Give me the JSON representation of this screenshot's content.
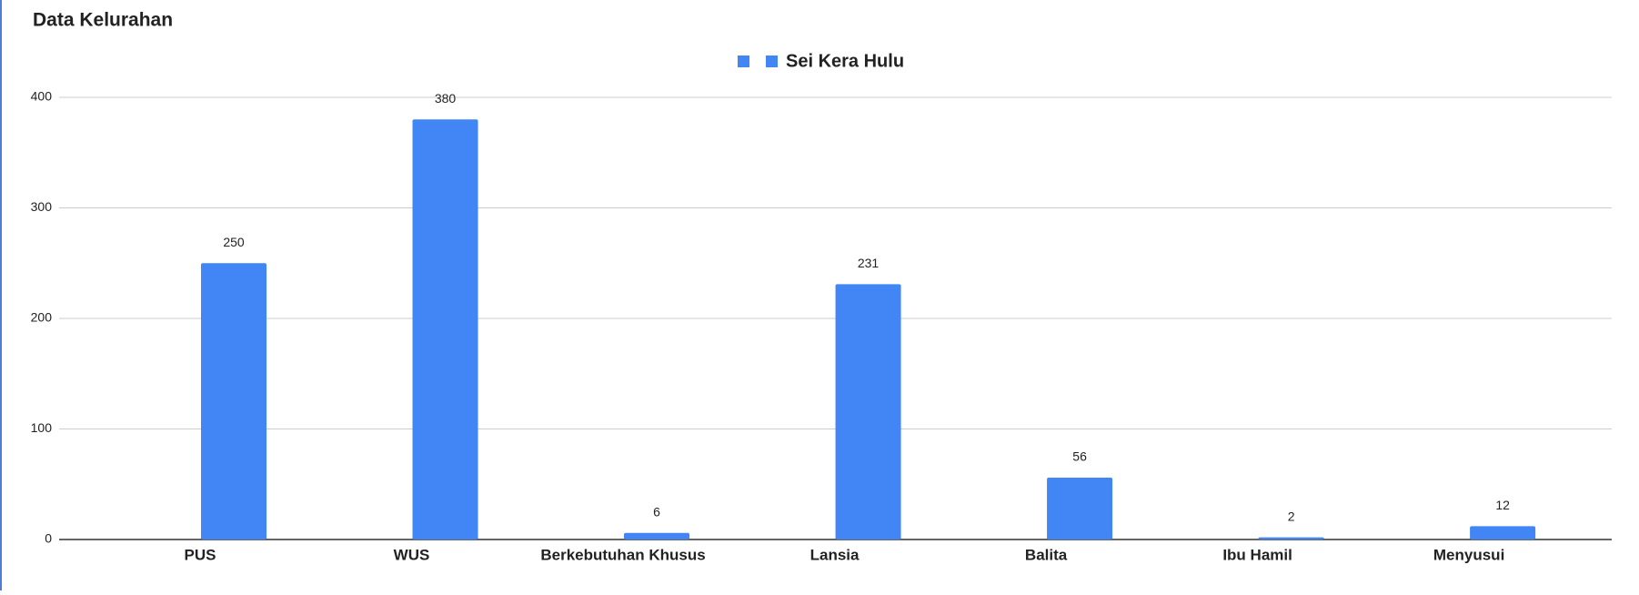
{
  "chart_data": {
    "type": "bar",
    "title": "Data Kelurahan",
    "categories": [
      "PUS",
      "WUS",
      "Berkebutuhan Khusus",
      "Lansia",
      "Balita",
      "Ibu Hamil",
      "Menyusui"
    ],
    "series": [
      {
        "name": "Sei Kera Hulu",
        "color": "#4285f4",
        "values": [
          250,
          380,
          6,
          231,
          56,
          2,
          12
        ]
      }
    ],
    "ylim": [
      0,
      400
    ],
    "yticks": [
      0,
      100,
      200,
      300,
      400
    ],
    "grid": true,
    "legend": "top"
  }
}
